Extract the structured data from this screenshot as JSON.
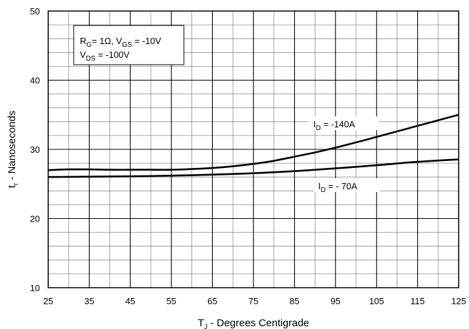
{
  "chart_data": {
    "type": "line",
    "title": "",
    "xlabel": {
      "main": "T",
      "sub": "J",
      "rest": " - Degrees Centigrade"
    },
    "ylabel": {
      "main": "t",
      "sub": "r",
      "rest": " - Nanoseconds"
    },
    "xlim": [
      25,
      125
    ],
    "ylim": [
      10,
      50
    ],
    "x_ticks": [
      25,
      35,
      45,
      55,
      65,
      75,
      85,
      95,
      105,
      115,
      125
    ],
    "y_ticks": [
      10,
      20,
      30,
      40,
      50
    ],
    "x_minor_step": 5,
    "y_minor_step": 2,
    "grid": true,
    "conditions": {
      "line1": [
        {
          "t": "R"
        },
        {
          "t": "G",
          "sub": true
        },
        {
          "t": "= 1Ω, V"
        },
        {
          "t": "GS",
          "sub": true
        },
        {
          "t": " = -10V"
        }
      ],
      "line2": [
        {
          "t": "V"
        },
        {
          "t": "DS",
          "sub": true
        },
        {
          "t": " = -100V"
        }
      ]
    },
    "series": [
      {
        "name": "I D = -140A",
        "label": {
          "main": "I",
          "sub": "D",
          "rest": " = -140A"
        },
        "x": [
          25,
          30,
          35,
          40,
          45,
          50,
          55,
          60,
          65,
          70,
          75,
          80,
          85,
          90,
          95,
          100,
          105,
          110,
          115,
          120,
          125
        ],
        "values": [
          27.0,
          27.1,
          27.1,
          27.05,
          27.05,
          27.05,
          27.05,
          27.15,
          27.3,
          27.55,
          27.9,
          28.35,
          28.95,
          29.55,
          30.25,
          31.0,
          31.8,
          32.6,
          33.4,
          34.2,
          35.0
        ]
      },
      {
        "name": "I D = - 70A",
        "label": {
          "main": "I",
          "sub": "D",
          "rest": " = - 70A"
        },
        "x": [
          25,
          35,
          45,
          55,
          65,
          75,
          85,
          95,
          105,
          115,
          125
        ],
        "values": [
          26.0,
          26.05,
          26.1,
          26.2,
          26.35,
          26.55,
          26.85,
          27.25,
          27.7,
          28.2,
          28.55
        ]
      }
    ]
  }
}
